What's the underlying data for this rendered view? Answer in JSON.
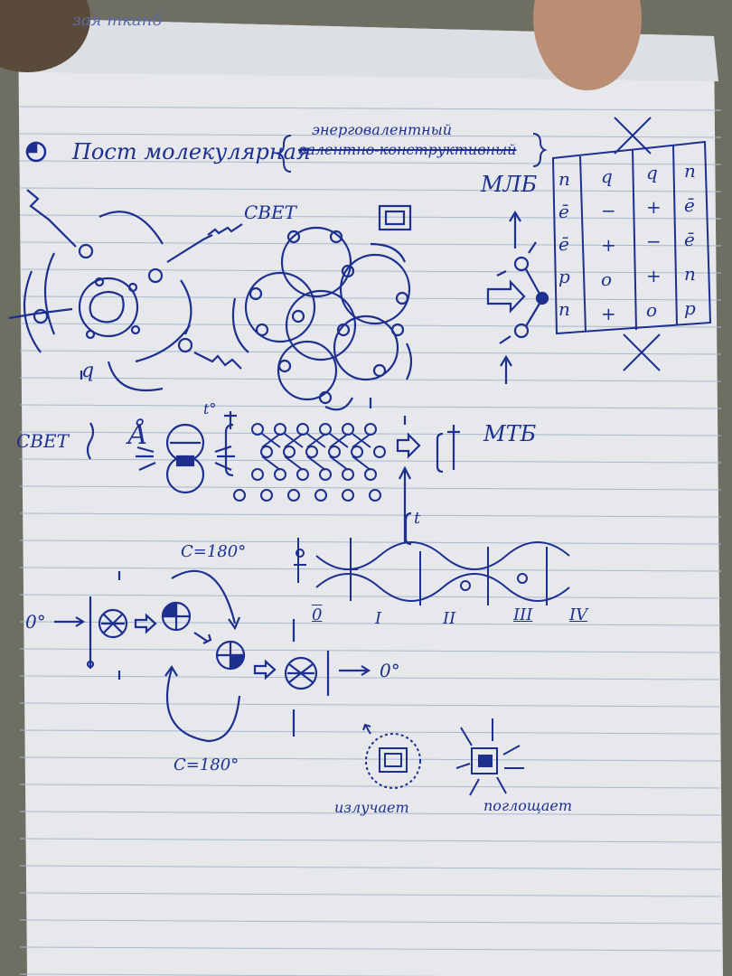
{
  "colors": {
    "ink": "#1d2f8f",
    "paper": "#e6e8ec",
    "rule": "#a9b8cc",
    "margin_line": "#c9a3aa",
    "skin": "#b98e74",
    "background": "#6f6e63"
  },
  "top_scribble": "зая тканб",
  "title": "Пост молекулярная",
  "brace_upper": "энерговалентный",
  "brace_lower_crossed": "валентно-конструктивный",
  "label_mlb": "МЛБ",
  "label_mtb": "МТБ",
  "label_svet_1": "СВЕТ",
  "label_svet_2": "СВЕТ",
  "label_q": "q",
  "label_angstrom": "Å",
  "label_t": "t",
  "label_degree": "t°",
  "table": {
    "col_left": [
      "п",
      "ē",
      "ē",
      "p",
      "п"
    ],
    "col_mid": [
      "q",
      "−",
      "+",
      "o",
      "+"
    ],
    "col_mid2": [
      "q",
      "+",
      "−",
      "+",
      "o"
    ],
    "col_right": [
      "п",
      "ē",
      "ē",
      "п",
      "р"
    ]
  },
  "angle_top": "С=180°",
  "angle_bottom": "С=180°",
  "zero_left": "0°",
  "zero_right": "0°",
  "roman": [
    "0",
    "I",
    "II",
    "III",
    "IV"
  ],
  "label_emits": "излучает",
  "label_absorbs": "поглощает"
}
